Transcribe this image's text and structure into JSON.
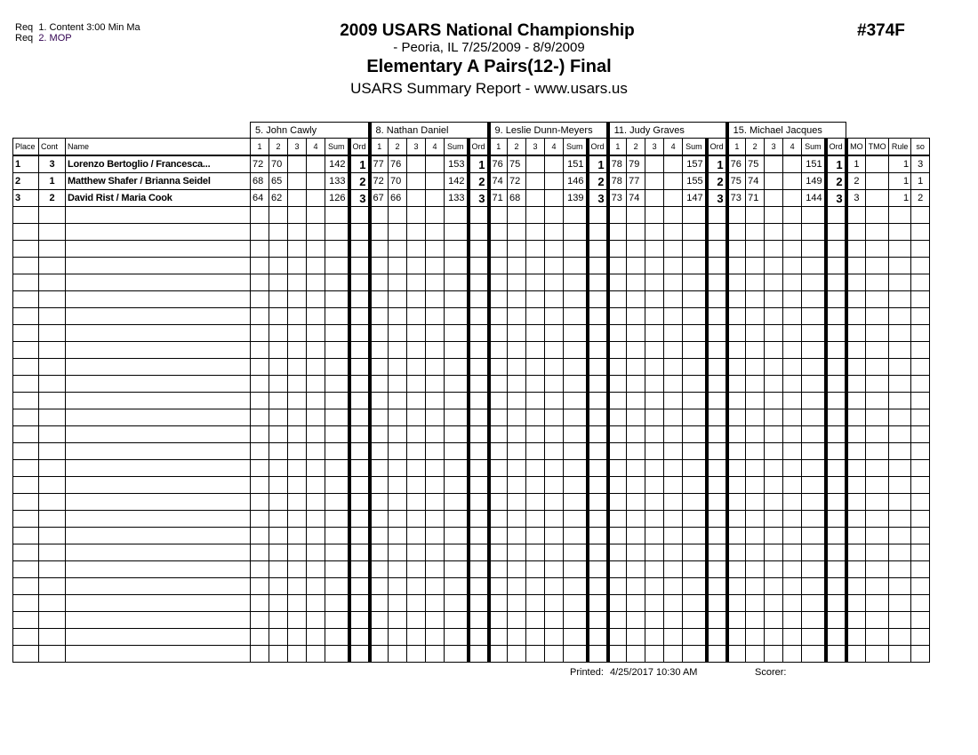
{
  "requirements": [
    {
      "label": "Req",
      "text": "1.  Content 3:00 Min Ma"
    },
    {
      "label": "Req",
      "text": "2.  MOP"
    }
  ],
  "header": {
    "title": "2009 USARS National Championship",
    "location": "- Peoria, IL  7/25/2009 - 8/9/2009",
    "event": "Elementary A Pairs(12-) Final",
    "subtitle": "USARS Summary Report - www.usars.us",
    "event_number": "#374F"
  },
  "columns": {
    "place": "Place",
    "cont": "Cont",
    "name": "Name",
    "judge_cols": [
      "1",
      "2",
      "3",
      "4",
      "Sum",
      "Ord"
    ],
    "extra": [
      "MO",
      "TMO",
      "Rule",
      "so"
    ]
  },
  "judges": [
    "5.  John  Cawly",
    "8.  Nathan Daniel",
    "9.  Leslie Dunn-Meyers",
    "11.  Judy Graves",
    "15.  Michael Jacques"
  ],
  "rows": [
    {
      "place": "1",
      "cont": "3",
      "name": "Lorenzo Bertoglio / Francesca...",
      "scores": [
        [
          "72",
          "70",
          "",
          "",
          "142",
          "1"
        ],
        [
          "77",
          "76",
          "",
          "",
          "153",
          "1"
        ],
        [
          "76",
          "75",
          "",
          "",
          "151",
          "1"
        ],
        [
          "78",
          "79",
          "",
          "",
          "157",
          "1"
        ],
        [
          "76",
          "75",
          "",
          "",
          "151",
          "1"
        ]
      ],
      "mo": "1",
      "tmo": "",
      "rule": "1",
      "so": "3"
    },
    {
      "place": "2",
      "cont": "1",
      "name": "Matthew Shafer / Brianna Seidel",
      "scores": [
        [
          "68",
          "65",
          "",
          "",
          "133",
          "2"
        ],
        [
          "72",
          "70",
          "",
          "",
          "142",
          "2"
        ],
        [
          "74",
          "72",
          "",
          "",
          "146",
          "2"
        ],
        [
          "78",
          "77",
          "",
          "",
          "155",
          "2"
        ],
        [
          "75",
          "74",
          "",
          "",
          "149",
          "2"
        ]
      ],
      "mo": "2",
      "tmo": "",
      "rule": "1",
      "so": "1"
    },
    {
      "place": "3",
      "cont": "2",
      "name": "David Rist / Maria Cook",
      "scores": [
        [
          "64",
          "62",
          "",
          "",
          "126",
          "3"
        ],
        [
          "67",
          "66",
          "",
          "",
          "133",
          "3"
        ],
        [
          "71",
          "68",
          "",
          "",
          "139",
          "3"
        ],
        [
          "73",
          "74",
          "",
          "",
          "147",
          "3"
        ],
        [
          "73",
          "71",
          "",
          "",
          "144",
          "3"
        ]
      ],
      "mo": "3",
      "tmo": "",
      "rule": "1",
      "so": "2"
    }
  ],
  "footer": {
    "printed_label": "Printed:",
    "printed_value": "4/25/2017  10:30 AM",
    "scorer_label": "Scorer:"
  }
}
